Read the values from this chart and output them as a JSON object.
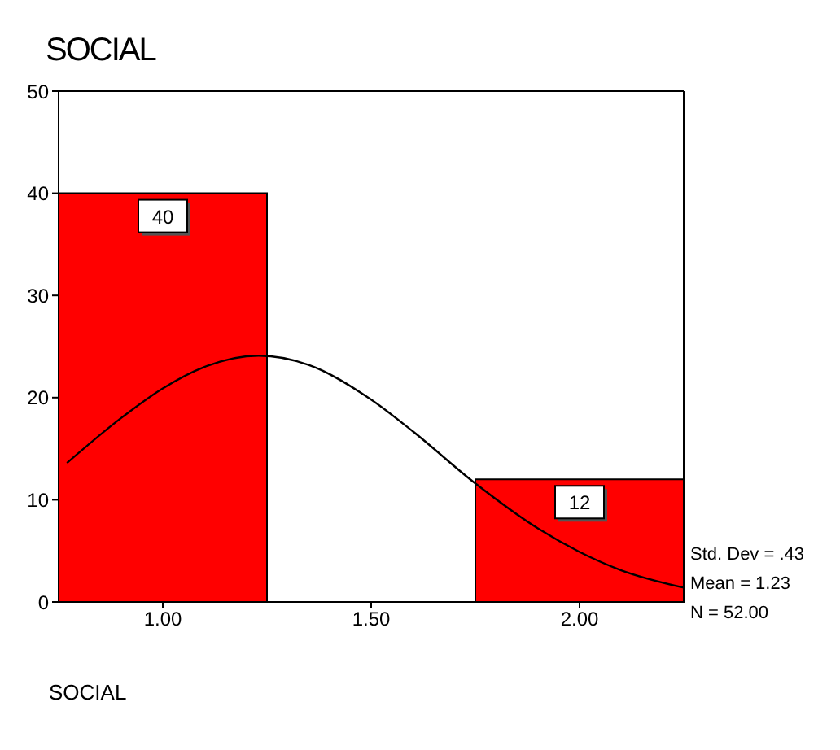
{
  "chart_data": {
    "type": "histogram",
    "title": "SOCIAL",
    "xlabel": "SOCIAL",
    "series": [
      {
        "bins": [
          0.75,
          1.25,
          1.75,
          2.25
        ],
        "values": [
          40,
          0,
          12
        ],
        "value_labels": [
          "40",
          null,
          "12"
        ],
        "color": "#ff0000"
      },
      {
        "type": "line",
        "x": [
          0.77,
          0.9,
          1.0,
          1.1,
          1.23,
          1.35,
          1.5,
          1.6,
          1.75,
          1.9,
          2.0,
          2.1,
          2.25
        ],
        "values": [
          13.6,
          18.0,
          20.9,
          23.0,
          24.1,
          23.2,
          19.8,
          16.7,
          11.6,
          7.2,
          4.9,
          3.1,
          1.4
        ],
        "color": "#000000"
      }
    ],
    "xlim": [
      0.75,
      2.25
    ],
    "xticks": [
      {
        "value": 1,
        "label": "1.00"
      },
      {
        "value": 1.5,
        "label": "1.50"
      },
      {
        "value": 2,
        "label": "2.00"
      }
    ],
    "ylim": [
      0,
      50
    ],
    "yticks": [
      0,
      10,
      20,
      30,
      40,
      50
    ],
    "annotations": [
      "Std. Dev = .43",
      "Mean = 1.23",
      "N = 52.00"
    ],
    "grid": false
  }
}
